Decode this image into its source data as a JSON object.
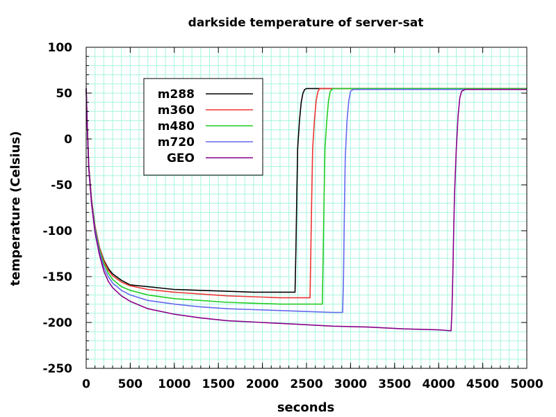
{
  "chart_data": {
    "type": "line",
    "title": "darkside temperature of server-sat",
    "xlabel": "seconds",
    "ylabel": "temperature (Celsius)",
    "xlim": [
      0,
      5000
    ],
    "ylim": [
      -250,
      100
    ],
    "x_ticks": [
      0,
      500,
      1000,
      1500,
      2000,
      2500,
      3000,
      3500,
      4000,
      4500,
      5000
    ],
    "y_ticks": [
      -250,
      -200,
      -150,
      -100,
      -50,
      0,
      50,
      100
    ],
    "x_minor_step": 100,
    "y_minor_step": 10,
    "grid": true,
    "legend_position": "top-left",
    "series": [
      {
        "name": "m288",
        "color": "#000000",
        "x": [
          0,
          10,
          30,
          60,
          100,
          150,
          200,
          250,
          300,
          400,
          500,
          700,
          1000,
          1300,
          1600,
          1900,
          2200,
          2370,
          2380,
          2390,
          2400,
          2420,
          2440,
          2460,
          2480,
          2500,
          2550,
          5000
        ],
        "y": [
          55,
          20,
          -30,
          -65,
          -95,
          -118,
          -132,
          -141,
          -147,
          -154,
          -159,
          -161,
          -164,
          -165,
          -166,
          -167,
          -167,
          -167,
          -120,
          -60,
          -10,
          20,
          40,
          50,
          54,
          55,
          55,
          55
        ]
      },
      {
        "name": "m360",
        "color": "#ee3333",
        "x": [
          0,
          10,
          30,
          60,
          100,
          150,
          200,
          250,
          300,
          400,
          500,
          700,
          1000,
          1300,
          1600,
          1900,
          2200,
          2500,
          2540,
          2550,
          2560,
          2570,
          2590,
          2610,
          2630,
          2650,
          2700,
          5000
        ],
        "y": [
          55,
          20,
          -30,
          -65,
          -95,
          -118,
          -133,
          -143,
          -149,
          -156,
          -160,
          -164,
          -167,
          -169,
          -171,
          -172,
          -173,
          -173,
          -173,
          -120,
          -60,
          -10,
          20,
          42,
          52,
          55,
          55,
          55
        ]
      },
      {
        "name": "m480",
        "color": "#22cc22",
        "x": [
          0,
          10,
          30,
          60,
          100,
          150,
          200,
          250,
          300,
          400,
          500,
          700,
          1000,
          1300,
          1600,
          1900,
          2200,
          2500,
          2680,
          2690,
          2700,
          2710,
          2730,
          2750,
          2770,
          2800,
          2850,
          5000
        ],
        "y": [
          55,
          20,
          -31,
          -67,
          -97,
          -120,
          -136,
          -146,
          -153,
          -161,
          -165,
          -170,
          -174,
          -176,
          -178,
          -179,
          -180,
          -180,
          -180,
          -120,
          -60,
          -10,
          20,
          42,
          52,
          55,
          55,
          55
        ]
      },
      {
        "name": "m720",
        "color": "#6666ee",
        "x": [
          0,
          10,
          30,
          60,
          100,
          150,
          200,
          250,
          300,
          400,
          500,
          700,
          1000,
          1300,
          1600,
          1900,
          2200,
          2500,
          2800,
          2910,
          2920,
          2930,
          2940,
          2960,
          2980,
          3000,
          3030,
          3100,
          5000
        ],
        "y": [
          55,
          20,
          -32,
          -68,
          -99,
          -123,
          -140,
          -150,
          -157,
          -165,
          -170,
          -176,
          -180,
          -183,
          -185,
          -186,
          -187,
          -188,
          -189,
          -189,
          -150,
          -80,
          -20,
          20,
          42,
          52,
          54,
          54,
          54
        ]
      },
      {
        "name": "GEO",
        "color": "#880088",
        "x": [
          0,
          10,
          30,
          60,
          100,
          150,
          200,
          250,
          300,
          400,
          500,
          700,
          1000,
          1300,
          1600,
          2000,
          2400,
          2800,
          3200,
          3600,
          4000,
          4140,
          4150,
          4160,
          4170,
          4180,
          4200,
          4220,
          4240,
          4260,
          4300,
          5000
        ],
        "y": [
          55,
          20,
          -33,
          -70,
          -102,
          -126,
          -144,
          -155,
          -162,
          -171,
          -177,
          -185,
          -191,
          -195,
          -198,
          -200,
          -202,
          -204,
          -205,
          -207,
          -208,
          -209,
          -190,
          -150,
          -100,
          -60,
          -10,
          25,
          45,
          52,
          54,
          54
        ]
      }
    ]
  }
}
